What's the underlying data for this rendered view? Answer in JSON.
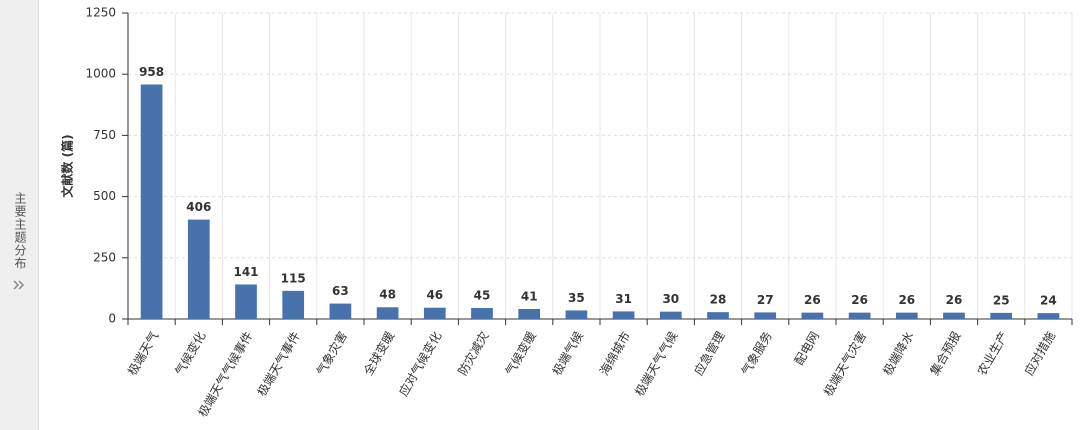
{
  "sidebar": {
    "title": "主要主题分布"
  },
  "chart_data": {
    "type": "bar",
    "y_label": "文献数 (篇)",
    "categories": [
      "极端天气",
      "气候变化",
      "极端天气气候事件",
      "极端天气事件",
      "气象灾害",
      "全球变暖",
      "应对气候变化",
      "防灾减灾",
      "气候变暖",
      "极端气候",
      "海绵城市",
      "极端天气气候",
      "应急管理",
      "气象服务",
      "配电网",
      "极端天气灾害",
      "极端降水",
      "集合预报",
      "农业生产",
      "应对措施"
    ],
    "values": [
      958,
      406,
      141,
      115,
      63,
      48,
      46,
      45,
      41,
      35,
      31,
      30,
      28,
      27,
      26,
      26,
      26,
      26,
      25,
      24
    ],
    "color": "#4872ab",
    "ylim": [
      0,
      1250
    ],
    "yticks": [
      0,
      250,
      500,
      750,
      1000,
      1250
    ],
    "grid": true
  }
}
